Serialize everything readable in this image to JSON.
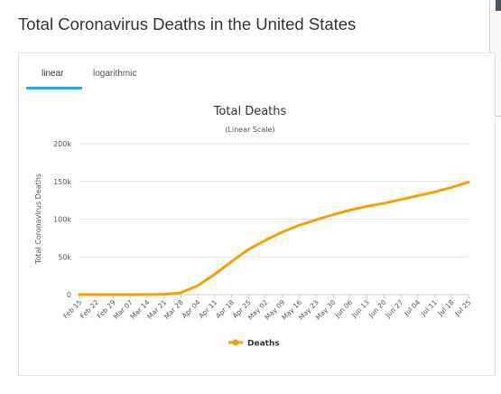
{
  "page": {
    "title": "Total Coronavirus Deaths in the United States"
  },
  "tabs": [
    {
      "label": "linear",
      "active": true
    },
    {
      "label": "logarithmic",
      "active": false
    }
  ],
  "colors": {
    "series": "#f5a00a",
    "tab_underline": "#1ab1e6",
    "grid": "#e6e6e6"
  },
  "chart_data": {
    "type": "line",
    "title": "Total Deaths",
    "subtitle": "(Linear Scale)",
    "ylabel": "Total Coronavirus Deaths",
    "xlabel": "",
    "ylim": [
      0,
      200000
    ],
    "yticks": [
      0,
      50000,
      100000,
      150000,
      200000
    ],
    "ytick_labels": [
      "0",
      "50k",
      "100k",
      "150k",
      "200k"
    ],
    "categories": [
      "Feb 15",
      "Feb 22",
      "Feb 29",
      "Mar 07",
      "Mar 14",
      "Mar 21",
      "Mar 28",
      "Apr 04",
      "Apr 11",
      "Apr 18",
      "Apr 25",
      "May 02",
      "May 09",
      "May 16",
      "May 23",
      "May 30",
      "Jun 06",
      "Jun 13",
      "Jun 20",
      "Jun 27",
      "Jul 04",
      "Jul 11",
      "Jul 18",
      "Jul 25"
    ],
    "grid": true,
    "legend": "bottom-center",
    "series": [
      {
        "name": "Deaths",
        "values": [
          0,
          0,
          1,
          20,
          60,
          350,
          2500,
          12000,
          27000,
          44000,
          60000,
          72000,
          83000,
          92000,
          99000,
          106000,
          112000,
          117000,
          121000,
          126000,
          131000,
          136000,
          142000,
          149000
        ]
      }
    ]
  }
}
